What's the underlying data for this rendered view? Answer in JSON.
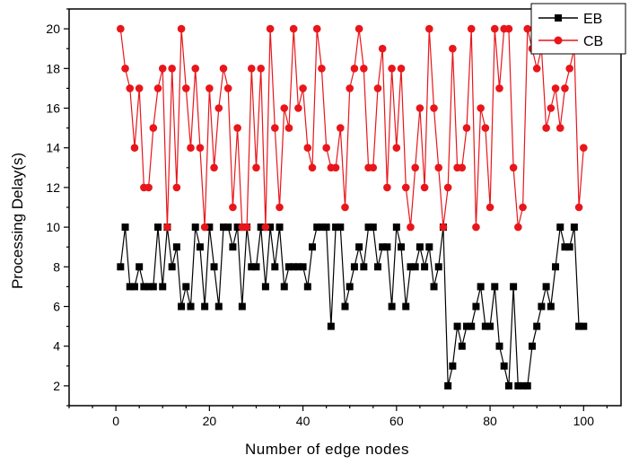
{
  "chart_data": {
    "type": "line",
    "title": "",
    "xlabel": "Number of edge nodes",
    "ylabel": "Processing Delay(s)",
    "xlim": [
      -10,
      108
    ],
    "ylim": [
      1,
      21
    ],
    "x_ticks": [
      0,
      20,
      40,
      60,
      80,
      100
    ],
    "y_ticks": [
      2,
      4,
      6,
      8,
      10,
      12,
      14,
      16,
      18,
      20
    ],
    "grid": false,
    "legend_position": "top-right",
    "series": [
      {
        "name": "EB",
        "color": "#000000",
        "marker": "square",
        "x": [
          1,
          2,
          3,
          4,
          5,
          6,
          7,
          8,
          9,
          10,
          11,
          12,
          13,
          14,
          15,
          16,
          17,
          18,
          19,
          20,
          21,
          22,
          23,
          24,
          25,
          26,
          27,
          28,
          29,
          30,
          31,
          32,
          33,
          34,
          35,
          36,
          37,
          38,
          39,
          40,
          41,
          42,
          43,
          44,
          45,
          46,
          47,
          48,
          49,
          50,
          51,
          52,
          53,
          54,
          55,
          56,
          57,
          58,
          59,
          60,
          61,
          62,
          63,
          64,
          65,
          66,
          67,
          68,
          69,
          70,
          71,
          72,
          73,
          74,
          75,
          76,
          77,
          78,
          79,
          80,
          81,
          82,
          83,
          84,
          85,
          86,
          87,
          88,
          89,
          90,
          91,
          92,
          93,
          94,
          95,
          96,
          97,
          98,
          99,
          100
        ],
        "values": [
          8,
          10,
          7,
          7,
          8,
          7,
          7,
          7,
          10,
          7,
          10,
          8,
          9,
          6,
          7,
          6,
          10,
          9,
          6,
          10,
          8,
          6,
          10,
          10,
          9,
          10,
          6,
          10,
          8,
          8,
          10,
          7,
          10,
          8,
          10,
          7,
          8,
          8,
          8,
          8,
          7,
          9,
          10,
          10,
          10,
          5,
          10,
          10,
          6,
          7,
          8,
          9,
          8,
          10,
          10,
          8,
          9,
          9,
          6,
          10,
          9,
          6,
          8,
          8,
          9,
          8,
          9,
          7,
          8,
          10,
          2,
          3,
          5,
          4,
          5,
          5,
          6,
          7,
          5,
          5,
          7,
          4,
          3,
          2,
          7,
          2,
          2,
          2,
          4,
          5,
          6,
          7,
          6,
          8,
          10,
          9,
          9,
          10,
          5,
          5
        ]
      },
      {
        "name": "CB",
        "color": "#e8161b",
        "marker": "circle",
        "x": [
          1,
          2,
          3,
          4,
          5,
          6,
          7,
          8,
          9,
          10,
          11,
          12,
          13,
          14,
          15,
          16,
          17,
          18,
          19,
          20,
          21,
          22,
          23,
          24,
          25,
          26,
          27,
          28,
          29,
          30,
          31,
          32,
          33,
          34,
          35,
          36,
          37,
          38,
          39,
          40,
          41,
          42,
          43,
          44,
          45,
          46,
          47,
          48,
          49,
          50,
          51,
          52,
          53,
          54,
          55,
          56,
          57,
          58,
          59,
          60,
          61,
          62,
          63,
          64,
          65,
          66,
          67,
          68,
          69,
          70,
          71,
          72,
          73,
          74,
          75,
          76,
          77,
          78,
          79,
          80,
          81,
          82,
          83,
          84,
          85,
          86,
          87,
          88,
          89,
          90,
          91,
          92,
          93,
          94,
          95,
          96,
          97,
          98,
          99,
          100
        ],
        "values": [
          20,
          18,
          17,
          14,
          17,
          12,
          12,
          15,
          17,
          18,
          10,
          18,
          12,
          20,
          17,
          14,
          18,
          14,
          10,
          17,
          13,
          16,
          18,
          17,
          11,
          15,
          10,
          10,
          18,
          13,
          18,
          10,
          20,
          15,
          11,
          16,
          15,
          20,
          16,
          17,
          14,
          13,
          20,
          18,
          14,
          13,
          13,
          15,
          11,
          17,
          18,
          20,
          18,
          13,
          13,
          17,
          19,
          12,
          18,
          14,
          18,
          12,
          10,
          13,
          16,
          12,
          20,
          16,
          13,
          10,
          12,
          19,
          13,
          13,
          15,
          20,
          10,
          16,
          15,
          11,
          20,
          17,
          20,
          20,
          13,
          10,
          11,
          20,
          19,
          18,
          19,
          15,
          16,
          17,
          15,
          17,
          18,
          19,
          11,
          14
        ]
      }
    ]
  }
}
